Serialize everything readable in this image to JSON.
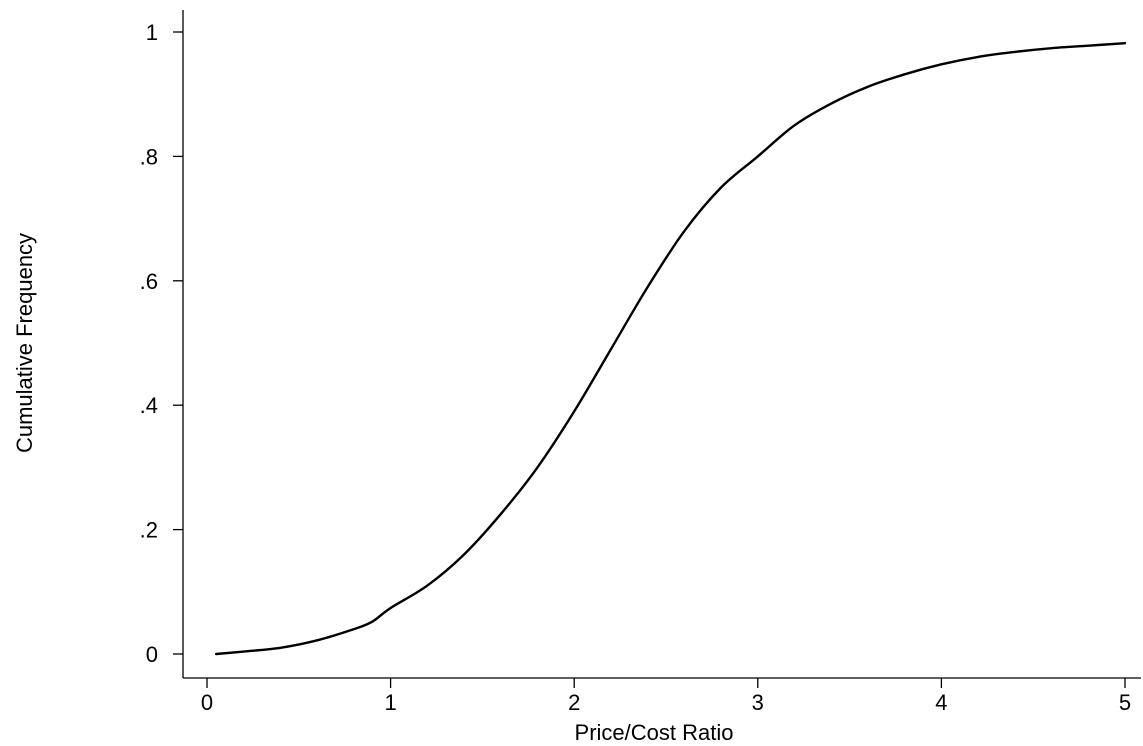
{
  "chart_data": {
    "type": "line",
    "title": "",
    "xlabel": "Price/Cost Ratio",
    "ylabel": "Cumulative Frequency",
    "xlim": [
      0,
      5
    ],
    "ylim": [
      0,
      1
    ],
    "x_ticks": [
      0,
      1,
      2,
      3,
      4,
      5
    ],
    "x_tick_labels": [
      "0",
      "1",
      "2",
      "3",
      "4",
      "5"
    ],
    "y_ticks": [
      0,
      0.2,
      0.4,
      0.6,
      0.8,
      1
    ],
    "y_tick_labels": [
      "0",
      ".2",
      ".4",
      ".6",
      ".8",
      "1"
    ],
    "grid": false,
    "line_color": "#000000",
    "series": [
      {
        "x": [
          0.05,
          0.2,
          0.4,
          0.6,
          0.8,
          0.9,
          1.0,
          1.2,
          1.4,
          1.6,
          1.8,
          2.0,
          2.2,
          2.4,
          2.6,
          2.8,
          3.0,
          3.2,
          3.4,
          3.6,
          3.8,
          4.0,
          4.2,
          4.4,
          4.6,
          4.8,
          5.0
        ],
        "y": [
          0.0,
          0.004,
          0.01,
          0.022,
          0.04,
          0.052,
          0.074,
          0.11,
          0.16,
          0.225,
          0.3,
          0.39,
          0.49,
          0.59,
          0.68,
          0.75,
          0.8,
          0.85,
          0.885,
          0.912,
          0.932,
          0.948,
          0.96,
          0.968,
          0.974,
          0.978,
          0.982
        ]
      }
    ]
  }
}
